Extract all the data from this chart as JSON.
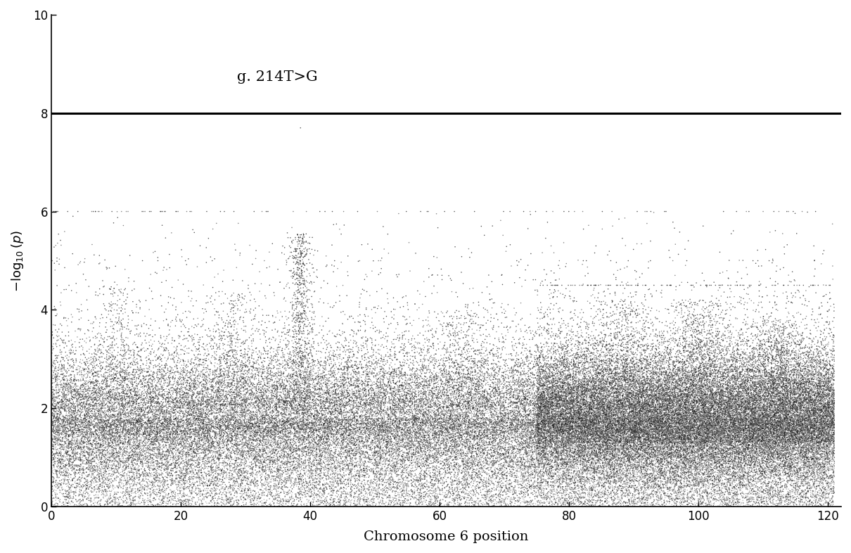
{
  "title": "g. 214T>G",
  "xlabel": "Chromosome 6 position",
  "xlim": [
    0,
    122
  ],
  "ylim": [
    0,
    10
  ],
  "xticks": [
    0,
    20,
    40,
    60,
    80,
    100,
    120
  ],
  "yticks": [
    0,
    2,
    4,
    6,
    8,
    10
  ],
  "threshold_y": 8.0,
  "threshold_color": "#000000",
  "threshold_lw": 2.2,
  "background_color": "#ffffff",
  "random_seed": 7,
  "title_fontsize": 15,
  "xlabel_fontsize": 14,
  "ylabel_fontsize": 13
}
